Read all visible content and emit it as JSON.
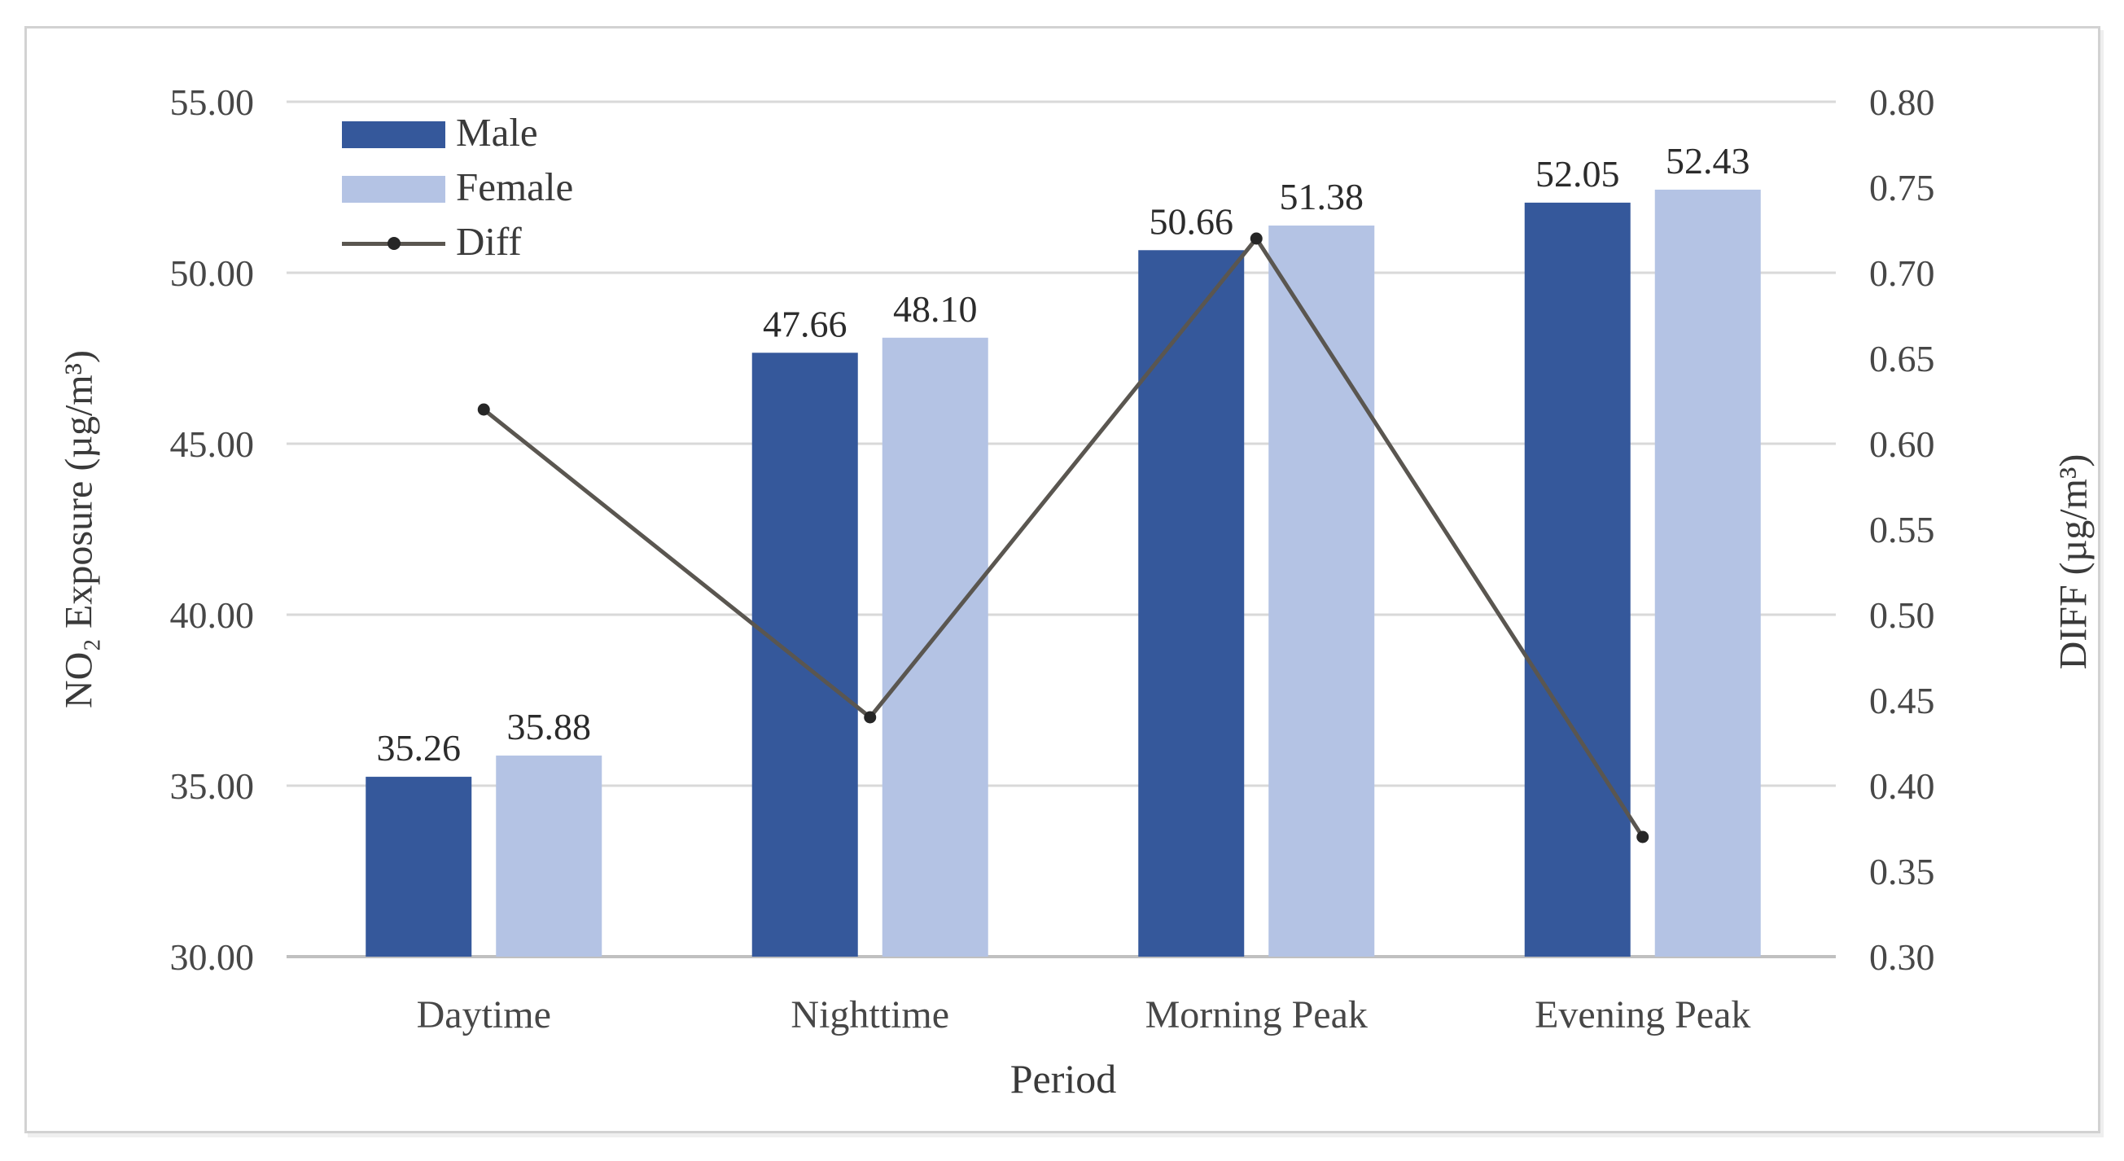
{
  "chart_data": {
    "type": "combo-bar-line",
    "title": "",
    "categories": [
      "Daytime",
      "Nighttime",
      "Morning Peak",
      "Evening Peak"
    ],
    "xlabel": "Period",
    "ylabel_left": "NO₂ Exposure (µg/m³)",
    "ylabel_right": "DIFF (µg/m³)",
    "left_axis": {
      "min": 30,
      "max": 55,
      "step": 5,
      "tick_labels": [
        "55.00",
        "50.00",
        "45.00",
        "40.00",
        "35.00",
        "30.00"
      ]
    },
    "right_axis": {
      "min": 0.3,
      "max": 0.8,
      "step": 0.05,
      "tick_labels": [
        "0.80",
        "0.75",
        "0.70",
        "0.65",
        "0.60",
        "0.55",
        "0.50",
        "0.45",
        "0.40",
        "0.35",
        "0.30"
      ]
    },
    "series": [
      {
        "name": "Male",
        "type": "bar",
        "axis": "left",
        "color": "#35589B",
        "values": [
          35.26,
          47.66,
          50.66,
          52.05
        ],
        "labels": [
          "35.26",
          "47.66",
          "50.66",
          "52.05"
        ]
      },
      {
        "name": "Female",
        "type": "bar",
        "axis": "left",
        "color": "#B4C3E4",
        "values": [
          35.88,
          48.1,
          51.38,
          52.43
        ],
        "labels": [
          "35.88",
          "48.10",
          "51.38",
          "52.43"
        ]
      },
      {
        "name": "Diff",
        "type": "line",
        "axis": "right",
        "color": "#5A5650",
        "marker_color": "#262626",
        "values": [
          0.62,
          0.44,
          0.72,
          0.37
        ]
      }
    ],
    "legend": {
      "position": "inside-top-left",
      "entries": [
        "Male",
        "Female",
        "Diff"
      ]
    },
    "grid": {
      "on": true,
      "color": "#D9D9D9",
      "axis_line_color": "#C0C0C0"
    },
    "text_colors": {
      "ticks": "#474747",
      "titles": "#3A3A3A",
      "data_labels": "#2B2B2B"
    }
  }
}
